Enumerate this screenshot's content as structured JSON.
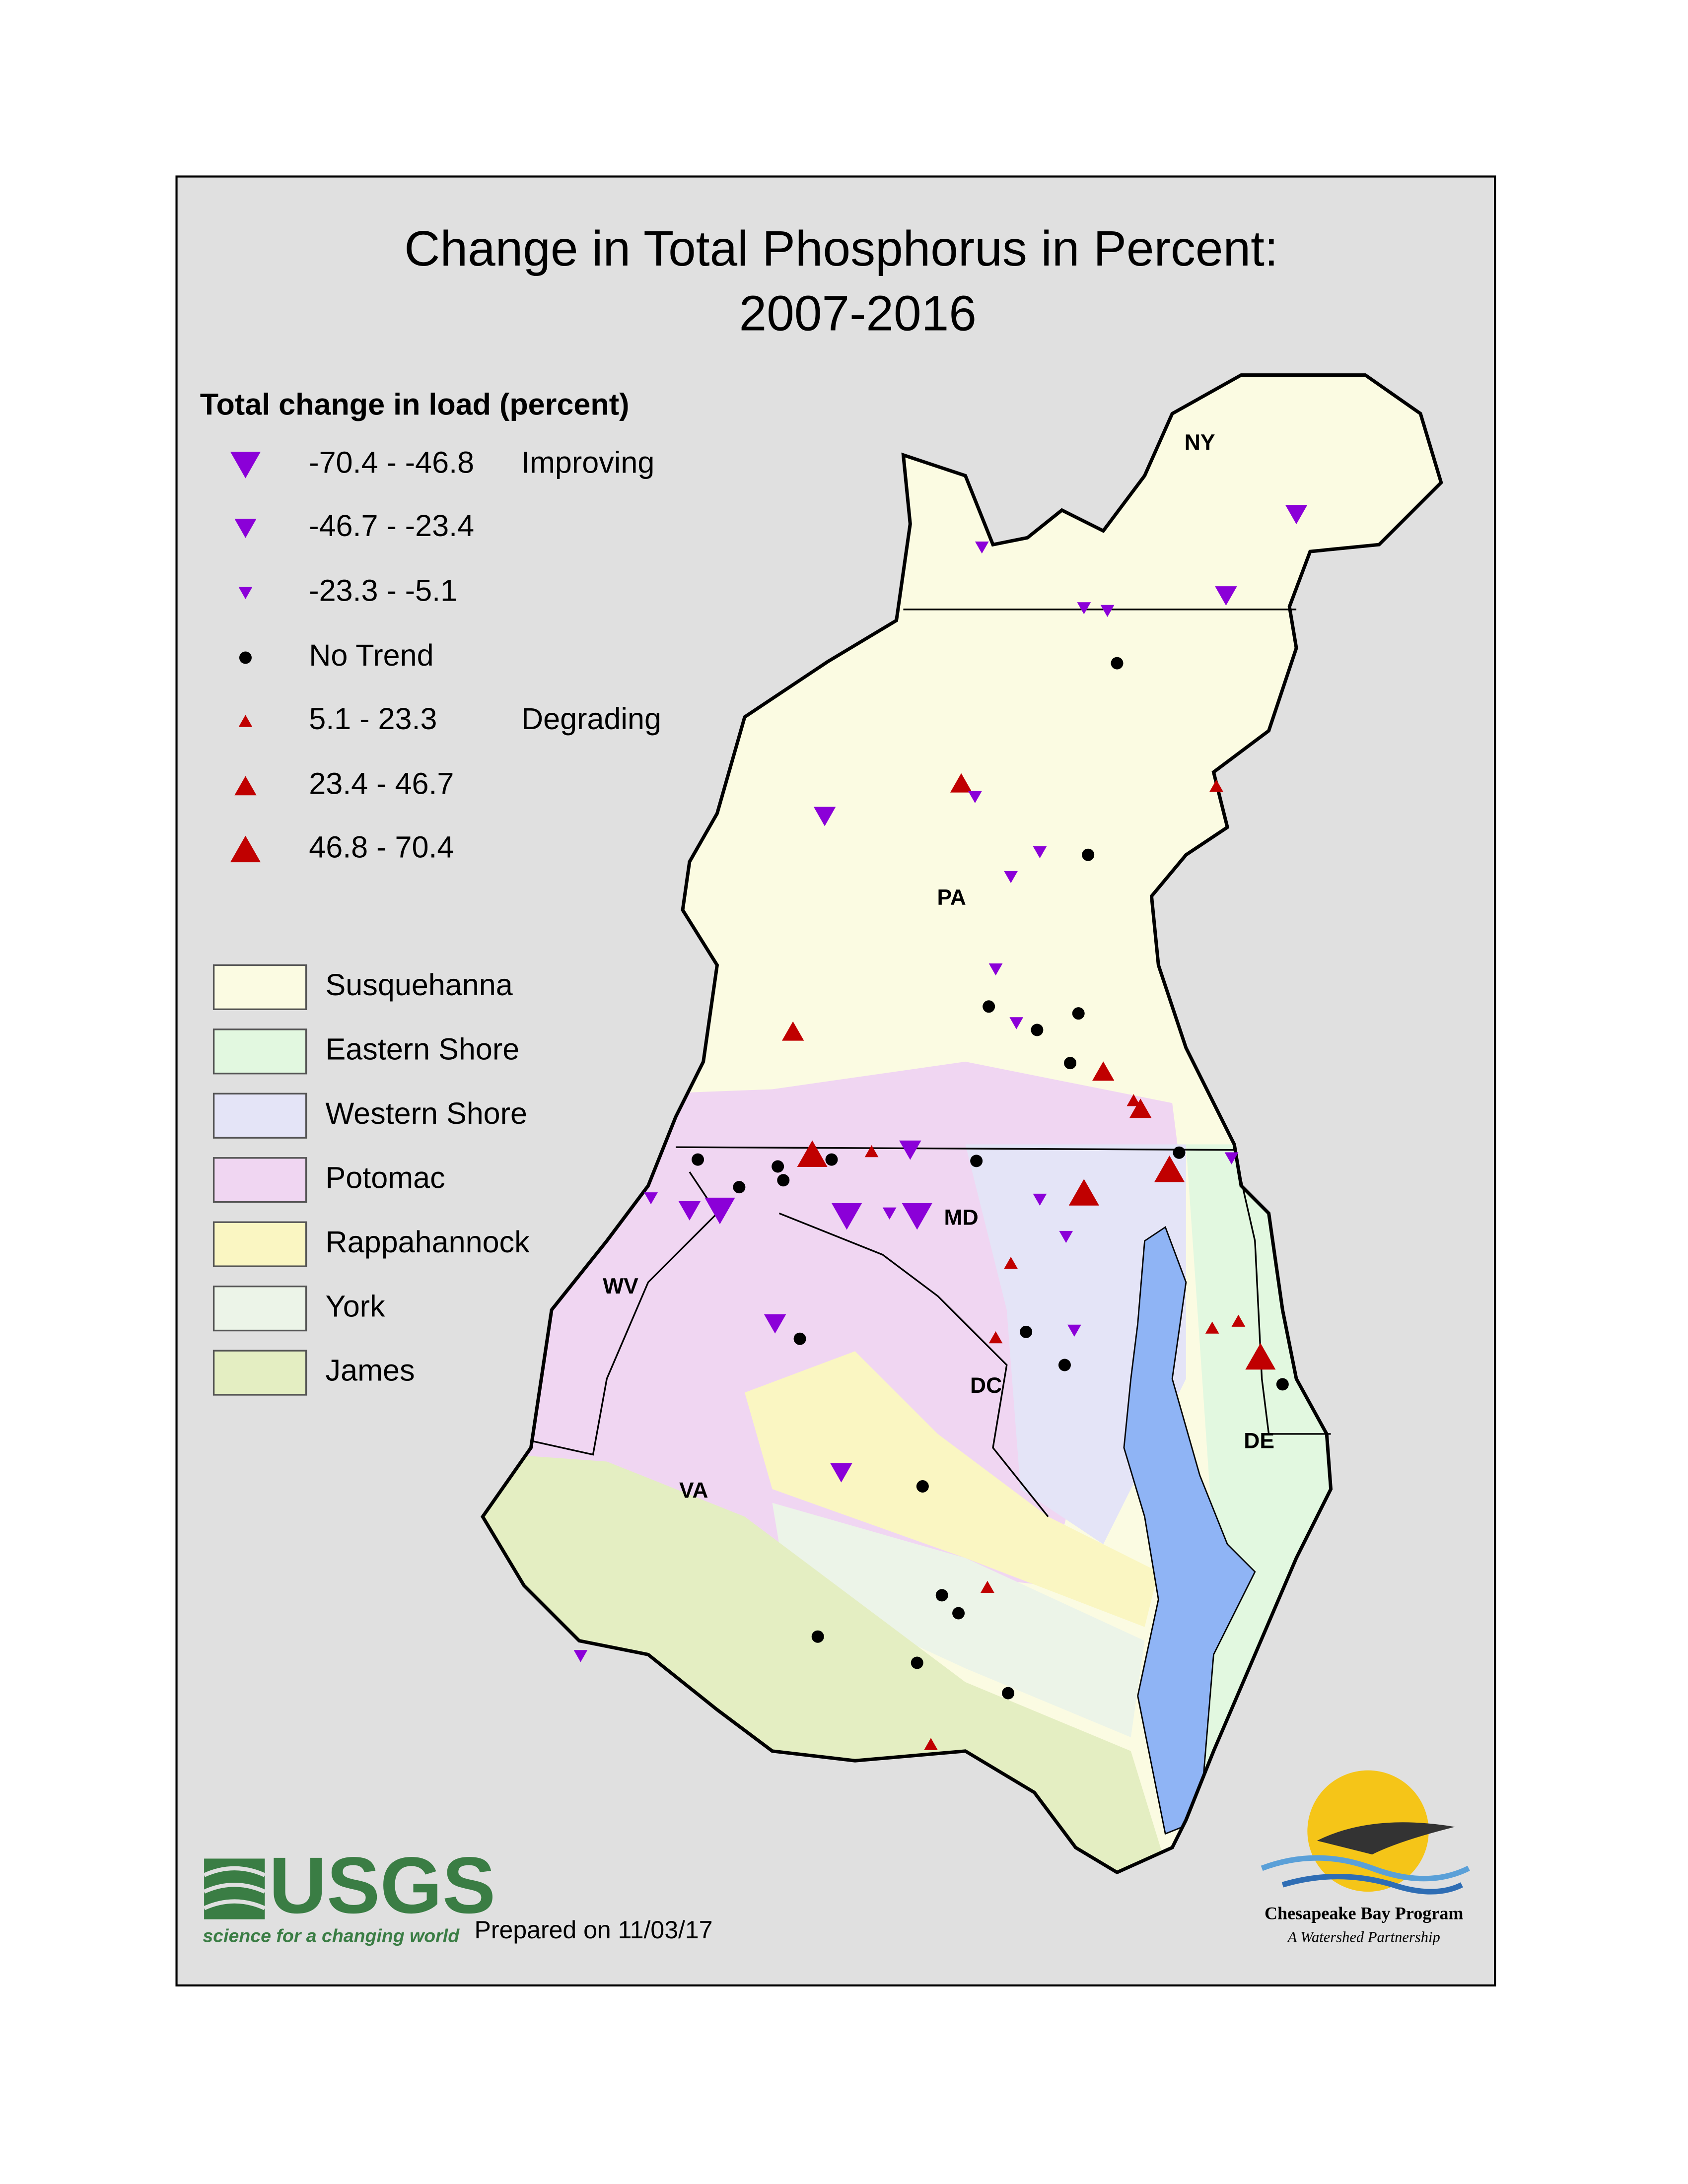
{
  "title": [
    "Change in Total Phosphorus in Percent:",
    "2007-2016"
  ],
  "legend": {
    "title": "Total change in load (percent)",
    "items": [
      {
        "label": "-70.4 - -46.8",
        "group": "Improving"
      },
      {
        "label": "-46.7 - -23.4"
      },
      {
        "label": "-23.3 - -5.1"
      },
      {
        "label": "No Trend"
      },
      {
        "label": "5.1 - 23.3",
        "group": "Degrading"
      },
      {
        "label": "23.4 - 46.7"
      },
      {
        "label": "46.8 - 70.4"
      }
    ]
  },
  "basins": [
    {
      "name": "Susquehanna",
      "color": "#fbfbe2"
    },
    {
      "name": "Eastern Shore",
      "color": "#e2f8e0"
    },
    {
      "name": "Western Shore",
      "color": "#e4e4f7"
    },
    {
      "name": "Potomac",
      "color": "#f0d6f2"
    },
    {
      "name": "Rappahannock",
      "color": "#faf6c2"
    },
    {
      "name": "York",
      "color": "#ecf4e8"
    },
    {
      "name": "James",
      "color": "#e4eec2"
    }
  ],
  "states": [
    "NY",
    "PA",
    "MD",
    "WV",
    "DC",
    "DE",
    "VA"
  ],
  "footer": {
    "usgs": "USGS",
    "usgs_tagline": "science for a changing world",
    "prepared": "Prepared on 11/03/17",
    "cbp": "Chesapeake Bay Program",
    "cbp_tagline": "A Watershed Partnership"
  }
}
